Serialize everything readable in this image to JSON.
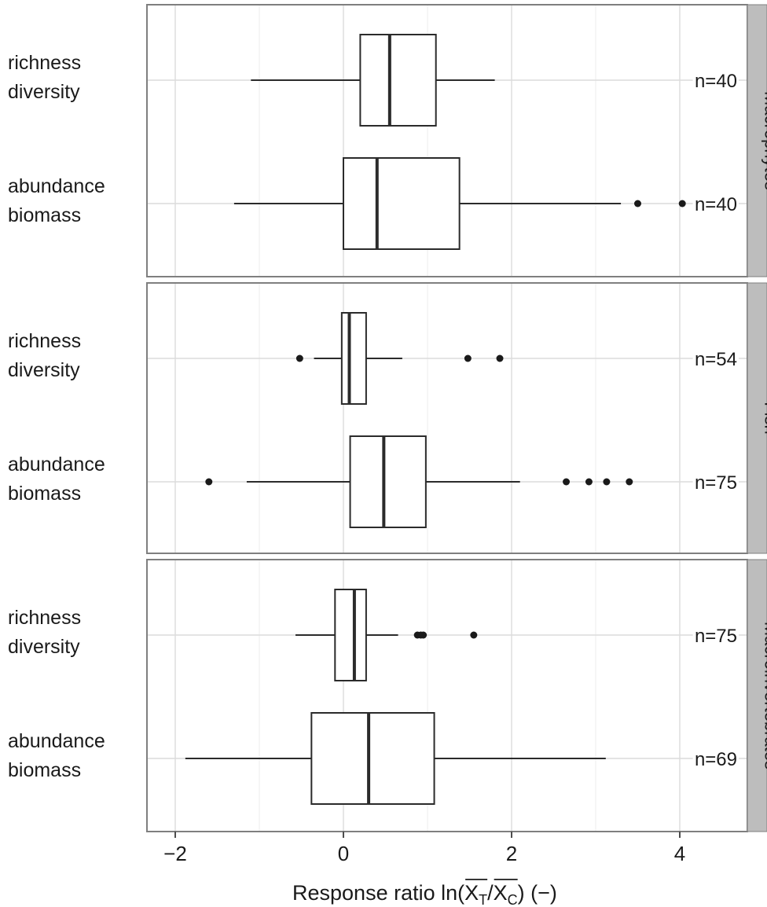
{
  "chart_data": {
    "type": "boxplot",
    "orientation": "horizontal",
    "xlabel": {
      "prefix": "Response ratio ln(",
      "num_letter": "X",
      "num_sub": "T",
      "slash": "/",
      "den_letter": "X",
      "den_sub": "C",
      "suffix": ") (−)"
    },
    "xlim": [
      -2.4,
      4.9
    ],
    "xticks": [
      -2,
      0,
      2,
      4
    ],
    "xtick_labels": [
      "−2",
      "0",
      "2",
      "4"
    ],
    "minor_gridlines": [
      -1,
      1,
      3
    ],
    "grid": true,
    "panels": [
      {
        "name": "Macrophytes",
        "rows": [
          {
            "label_lines": [
              "richness",
              "diversity"
            ],
            "n_label": "n=40",
            "whisker_low": -1.1,
            "q1": 0.2,
            "median": 0.55,
            "q3": 1.1,
            "whisker_high": 1.8,
            "outliers": []
          },
          {
            "label_lines": [
              "abundance",
              "biomass"
            ],
            "n_label": "n=40",
            "whisker_low": -1.3,
            "q1": 0.0,
            "median": 0.4,
            "q3": 1.38,
            "whisker_high": 3.3,
            "outliers": [
              3.5,
              4.03
            ]
          }
        ]
      },
      {
        "name": "Fish",
        "rows": [
          {
            "label_lines": [
              "richness",
              "diversity"
            ],
            "n_label": "n=54",
            "whisker_low": -0.35,
            "q1": -0.02,
            "median": 0.07,
            "q3": 0.27,
            "whisker_high": 0.7,
            "outliers": [
              -0.52,
              1.48,
              1.86
            ]
          },
          {
            "label_lines": [
              "abundance",
              "biomass"
            ],
            "n_label": "n=75",
            "whisker_low": -1.15,
            "q1": 0.08,
            "median": 0.48,
            "q3": 0.98,
            "whisker_high": 2.1,
            "outliers": [
              -1.6,
              2.65,
              2.92,
              3.13,
              3.4
            ]
          }
        ]
      },
      {
        "name": "Macroinvertebrates",
        "rows": [
          {
            "label_lines": [
              "richness",
              "diversity"
            ],
            "n_label": "n=75",
            "whisker_low": -0.57,
            "q1": -0.1,
            "median": 0.13,
            "q3": 0.27,
            "whisker_high": 0.65,
            "outliers": [
              0.88,
              0.92,
              0.95,
              1.55
            ]
          },
          {
            "label_lines": [
              "abundance",
              "biomass"
            ],
            "n_label": "n=69",
            "whisker_low": -1.88,
            "q1": -0.38,
            "median": 0.3,
            "q3": 1.08,
            "whisker_high": 3.12,
            "outliers": []
          }
        ]
      }
    ],
    "colors": {
      "box_fill": "#ffffff",
      "line": "#2b2b2b",
      "outlier": "#1a1a1a",
      "grid_major": "#dcdcdc",
      "grid_minor": "#eeeeee",
      "panel_border": "#7f7f7f",
      "strip_fill": "#bdbdbd",
      "text": "#1a1a1a"
    }
  }
}
